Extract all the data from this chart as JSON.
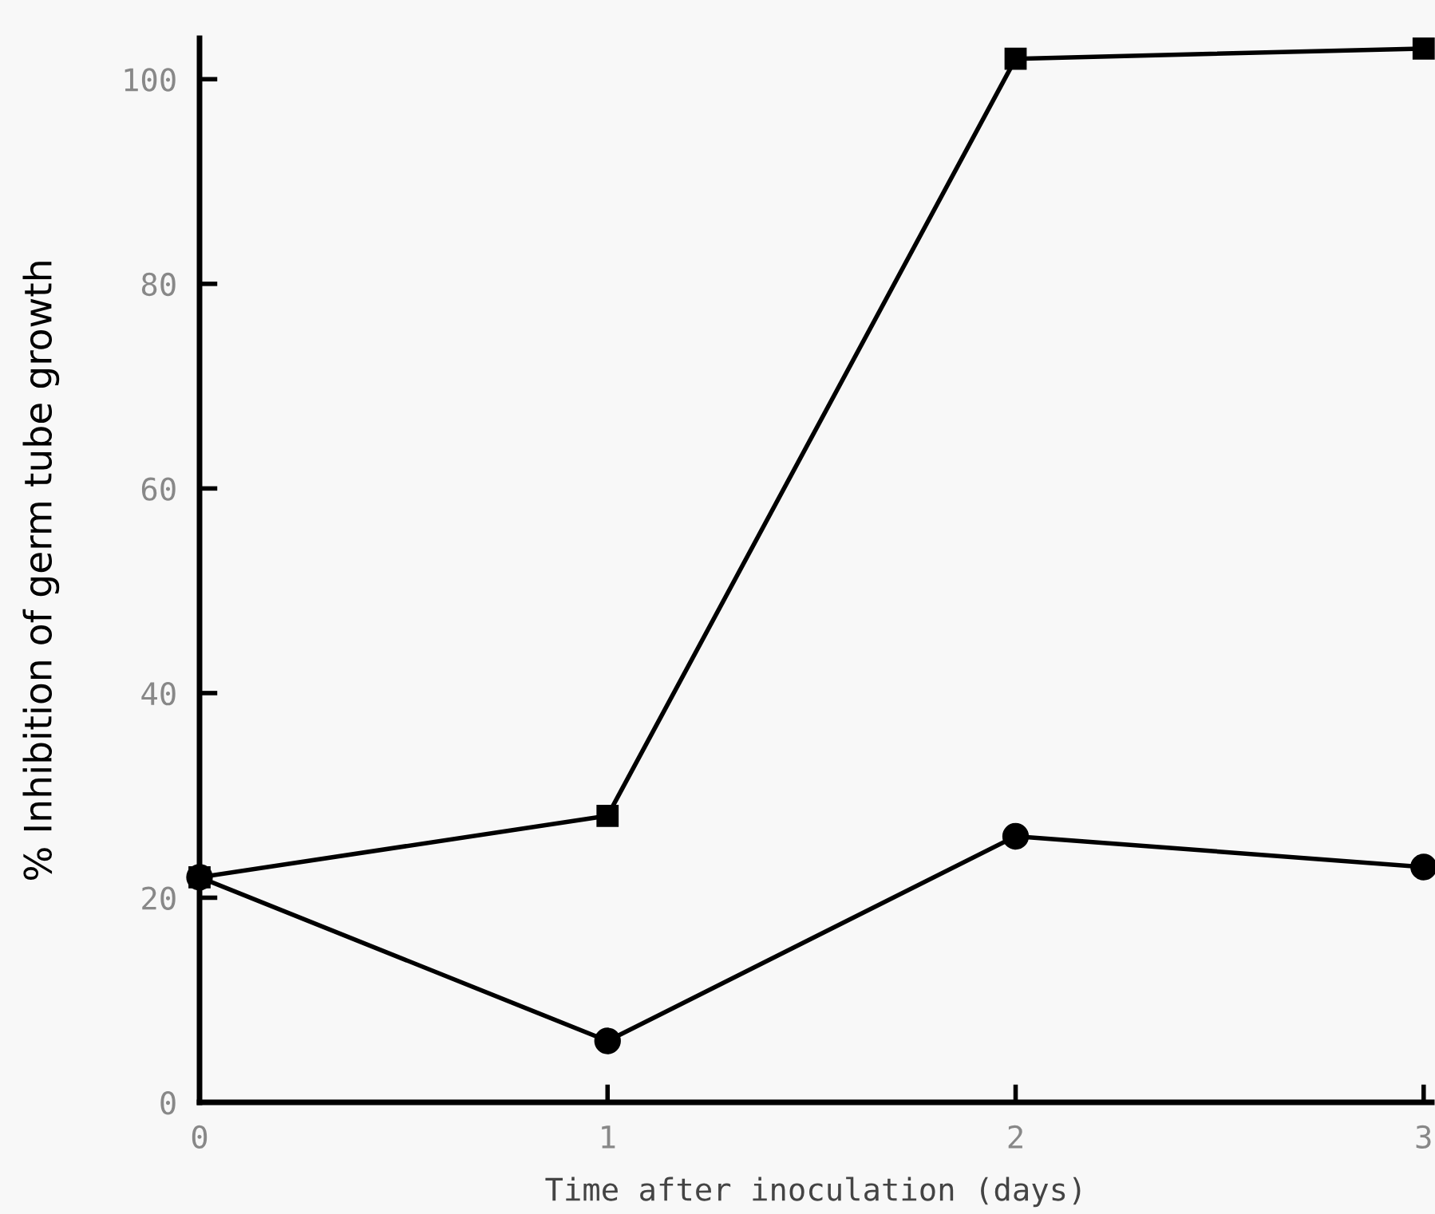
{
  "chart_data": {
    "type": "line",
    "xlabel": "Time after inoculation (days)",
    "ylabel": "% Inhibition of germ tube growth",
    "x": [
      0,
      1,
      2,
      3
    ],
    "series": [
      {
        "color": "#000000",
        "marker": "circle",
        "values": [
          22,
          6,
          26,
          23
        ]
      },
      {
        "color": "#000000",
        "marker": "square",
        "values": [
          22,
          28,
          102,
          103
        ]
      }
    ],
    "xlim": [
      0,
      3.02
    ],
    "ylim": [
      0,
      104
    ],
    "xticks": [
      0,
      1,
      2,
      3
    ],
    "yticks": [
      0,
      20,
      40,
      60,
      80,
      100
    ],
    "grid": false,
    "legend": false,
    "line_style": "solid"
  }
}
